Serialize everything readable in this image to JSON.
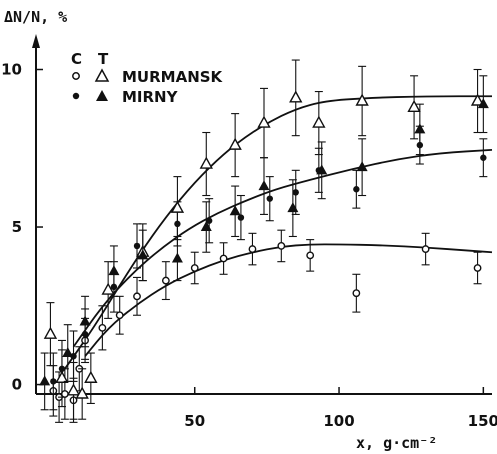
{
  "chart_data": {
    "type": "scatter",
    "ylabel": "ΔN/N, %",
    "xlabel": "x, g·cm⁻²",
    "xlim": [
      -5,
      153
    ],
    "ylim": [
      -0.3,
      11
    ],
    "x_ticks": [
      50,
      100,
      150
    ],
    "y_ticks": [
      0,
      5,
      10
    ],
    "legend": {
      "placement": "top-left",
      "header_c": "C",
      "header_t": "T",
      "rows": [
        "MURMANSK",
        "MIRNY"
      ]
    },
    "series": [
      {
        "name": "MURMANSK",
        "marker": "open-circle",
        "points": [
          [
            1,
            -0.2
          ],
          [
            3,
            -0.4
          ],
          [
            5,
            -0.3
          ],
          [
            8,
            -0.5
          ],
          [
            10,
            0.5
          ],
          [
            12,
            1.4
          ],
          [
            18,
            1.8
          ],
          [
            24,
            2.2
          ],
          [
            30,
            2.8
          ],
          [
            40,
            3.3
          ],
          [
            50,
            3.7
          ],
          [
            60,
            4.0
          ],
          [
            70,
            4.3
          ],
          [
            80,
            4.4
          ],
          [
            90,
            4.1
          ],
          [
            106,
            2.9
          ],
          [
            130,
            4.3
          ],
          [
            148,
            3.7
          ]
        ],
        "errors": [
          0.8,
          0.8,
          0.8,
          0.7,
          0.7,
          0.7,
          0.7,
          0.6,
          0.6,
          0.6,
          0.5,
          0.5,
          0.5,
          0.5,
          0.5,
          0.6,
          0.5,
          0.5
        ]
      },
      {
        "name": "MIRNY",
        "marker": "filled-circle",
        "points": [
          [
            1,
            0.1
          ],
          [
            4,
            0.5
          ],
          [
            8,
            0.9
          ],
          [
            12,
            1.6
          ],
          [
            22,
            3.1
          ],
          [
            30,
            4.4
          ],
          [
            44,
            5.1
          ],
          [
            55,
            5.2
          ],
          [
            66,
            5.3
          ],
          [
            76,
            5.9
          ],
          [
            85,
            6.1
          ],
          [
            93,
            6.8
          ],
          [
            106,
            6.2
          ],
          [
            128,
            7.6
          ],
          [
            150,
            7.2
          ]
        ],
        "errors": [
          0.9,
          0.9,
          0.8,
          0.8,
          0.8,
          0.7,
          0.7,
          0.7,
          0.7,
          0.7,
          0.7,
          0.7,
          0.6,
          0.6,
          0.6
        ]
      },
      {
        "name": "MURMANSK",
        "marker": "open-triangle",
        "points": [
          [
            0,
            1.6
          ],
          [
            4,
            0.2
          ],
          [
            8,
            -0.2
          ],
          [
            11,
            -0.3
          ],
          [
            14,
            0.2
          ],
          [
            20,
            3.0
          ],
          [
            32,
            4.2
          ],
          [
            44,
            5.6
          ],
          [
            54,
            7.0
          ],
          [
            64,
            7.6
          ],
          [
            74,
            8.3
          ],
          [
            85,
            9.1
          ],
          [
            93,
            8.3
          ],
          [
            108,
            9.0
          ],
          [
            126,
            8.8
          ],
          [
            148,
            9.0
          ]
        ],
        "errors": [
          1.0,
          0.9,
          0.9,
          0.8,
          0.8,
          0.9,
          0.9,
          1.0,
          1.0,
          1.0,
          1.1,
          1.2,
          1.0,
          1.1,
          1.0,
          1.0
        ]
      },
      {
        "name": "MIRNY",
        "marker": "filled-triangle",
        "points": [
          [
            -2,
            0.1
          ],
          [
            6,
            1.0
          ],
          [
            12,
            2.0
          ],
          [
            22,
            3.6
          ],
          [
            32,
            4.1
          ],
          [
            44,
            4.0
          ],
          [
            54,
            5.0
          ],
          [
            64,
            5.5
          ],
          [
            74,
            6.3
          ],
          [
            84,
            5.6
          ],
          [
            94,
            6.8
          ],
          [
            108,
            6.9
          ],
          [
            128,
            8.1
          ],
          [
            150,
            8.9
          ]
        ],
        "errors": [
          0.9,
          0.9,
          0.8,
          0.8,
          0.8,
          0.7,
          0.8,
          0.8,
          0.9,
          0.9,
          0.9,
          0.9,
          0.8,
          0.9
        ]
      }
    ],
    "fit_curves": [
      {
        "marker": "open-triangle",
        "points": [
          [
            5,
            0.5
          ],
          [
            15,
            1.8
          ],
          [
            25,
            3.3
          ],
          [
            35,
            4.7
          ],
          [
            45,
            5.9
          ],
          [
            55,
            6.9
          ],
          [
            65,
            7.7
          ],
          [
            75,
            8.3
          ],
          [
            85,
            8.75
          ],
          [
            95,
            9.0
          ],
          [
            110,
            9.1
          ],
          [
            130,
            9.15
          ],
          [
            153,
            9.15
          ]
        ]
      },
      {
        "marker": "filled-triangle",
        "points": [
          [
            8,
            1.2
          ],
          [
            18,
            2.5
          ],
          [
            28,
            3.5
          ],
          [
            38,
            4.3
          ],
          [
            48,
            4.95
          ],
          [
            58,
            5.45
          ],
          [
            68,
            5.85
          ],
          [
            78,
            6.2
          ],
          [
            90,
            6.5
          ],
          [
            105,
            6.85
          ],
          [
            120,
            7.15
          ],
          [
            135,
            7.35
          ],
          [
            153,
            7.45
          ]
        ]
      },
      {
        "marker": "open-circle",
        "points": [
          [
            12,
            0.9
          ],
          [
            20,
            1.8
          ],
          [
            30,
            2.55
          ],
          [
            40,
            3.15
          ],
          [
            50,
            3.6
          ],
          [
            60,
            3.95
          ],
          [
            70,
            4.2
          ],
          [
            80,
            4.38
          ],
          [
            90,
            4.45
          ],
          [
            100,
            4.45
          ],
          [
            115,
            4.42
          ],
          [
            130,
            4.35
          ],
          [
            145,
            4.25
          ],
          [
            153,
            4.2
          ]
        ]
      }
    ]
  }
}
